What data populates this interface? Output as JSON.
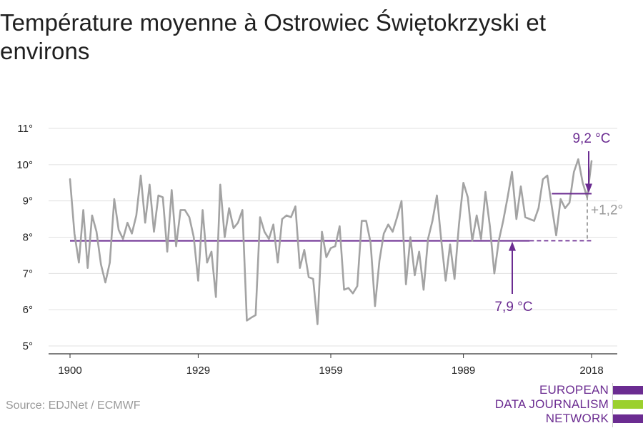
{
  "title": "Température moyenne à Ostrowiec Świętokrzyski et environs",
  "source": "Source: EDJNet / ECMWF",
  "logo": {
    "line1": "EUROPEAN",
    "line2": "DATA JOURNALISM",
    "line3": "NETWORK",
    "purple": "#6b2c91",
    "green": "#9bd02d"
  },
  "colors": {
    "series": "#a3a3a3",
    "accent": "#6b2c91",
    "grid": "#e0e0e0",
    "axis": "#333333",
    "diff": "#9a9a9a"
  },
  "chart_data": {
    "type": "line",
    "title": "Température moyenne à Ostrowiec Świętokrzyski et environs",
    "xlabel": "",
    "ylabel": "",
    "xlim": [
      1900,
      2018
    ],
    "ylim": [
      5,
      11
    ],
    "grid": true,
    "x_ticks": [
      1900,
      1929,
      1959,
      1989,
      2018
    ],
    "x_tick_labels": [
      "1900",
      "1929",
      "1959",
      "1989",
      "2018"
    ],
    "y_ticks": [
      5,
      6,
      7,
      8,
      9,
      10,
      11
    ],
    "y_tick_labels": [
      "5°",
      "6°",
      "7°",
      "8°",
      "9°",
      "10°",
      "11°"
    ],
    "series": [
      {
        "x": [
          1900,
          1901,
          1902,
          1903,
          1904,
          1905,
          1906,
          1907,
          1908,
          1909,
          1910,
          1911,
          1912,
          1913,
          1914,
          1915,
          1916,
          1917,
          1918,
          1919,
          1920,
          1921,
          1922,
          1923,
          1924,
          1925,
          1926,
          1927,
          1928,
          1929,
          1930,
          1931,
          1932,
          1933,
          1934,
          1935,
          1936,
          1937,
          1938,
          1939,
          1940,
          1941,
          1942,
          1943,
          1944,
          1945,
          1946,
          1947,
          1948,
          1949,
          1950,
          1951,
          1952,
          1953,
          1954,
          1955,
          1956,
          1957,
          1958,
          1959,
          1960,
          1961,
          1962,
          1963,
          1964,
          1965,
          1966,
          1967,
          1968,
          1969,
          1970,
          1971,
          1972,
          1973,
          1974,
          1975,
          1976,
          1977,
          1978,
          1979,
          1980,
          1981,
          1982,
          1983,
          1984,
          1985,
          1986,
          1987,
          1988,
          1989,
          1990,
          1991,
          1992,
          1993,
          1994,
          1995,
          1996,
          1997,
          1998,
          1999,
          2000,
          2001,
          2002,
          2003,
          2004,
          2005,
          2006,
          2007,
          2008,
          2009,
          2010,
          2011,
          2012,
          2013,
          2014,
          2015,
          2016,
          2017,
          2018
        ],
        "values": [
          9.6,
          8.1,
          7.3,
          8.75,
          7.15,
          8.6,
          8.15,
          7.25,
          6.75,
          7.3,
          9.05,
          8.2,
          7.95,
          8.4,
          8.1,
          8.6,
          9.7,
          8.4,
          9.45,
          8.15,
          9.15,
          9.1,
          7.6,
          9.3,
          7.75,
          8.75,
          8.75,
          8.55,
          8.0,
          6.8,
          8.75,
          7.3,
          7.6,
          6.35,
          9.45,
          8.0,
          8.8,
          8.25,
          8.4,
          8.75,
          5.7,
          5.78,
          5.85,
          8.55,
          8.15,
          7.95,
          8.35,
          7.3,
          8.5,
          8.6,
          8.55,
          8.85,
          7.15,
          7.65,
          6.9,
          6.85,
          5.6,
          8.15,
          7.45,
          7.7,
          7.75,
          8.3,
          6.55,
          6.6,
          6.45,
          6.65,
          8.45,
          8.45,
          7.85,
          6.1,
          7.35,
          8.1,
          8.35,
          8.15,
          8.55,
          9.0,
          6.7,
          8.0,
          6.95,
          7.6,
          6.55,
          7.95,
          8.45,
          9.15,
          7.9,
          6.8,
          7.8,
          6.85,
          8.35,
          9.5,
          9.1,
          7.9,
          8.6,
          7.95,
          9.25,
          8.3,
          7.0,
          7.9,
          8.45,
          9.1,
          9.8,
          8.5,
          9.4,
          8.55,
          8.5,
          8.45,
          8.8,
          9.6,
          9.7,
          8.85,
          8.05,
          9.05,
          8.8,
          8.95,
          9.8,
          10.15,
          9.5,
          9.1,
          10.1
        ]
      }
    ],
    "baseline": {
      "value": 7.9,
      "x_from": 1900,
      "x_to": 2018,
      "solid_to": 2004,
      "label": "7,9 °C"
    },
    "recent": {
      "value": 9.2,
      "x_from": 2009,
      "x_to": 2018,
      "label": "9,2 °C"
    },
    "difference_label": "+1,2°"
  }
}
